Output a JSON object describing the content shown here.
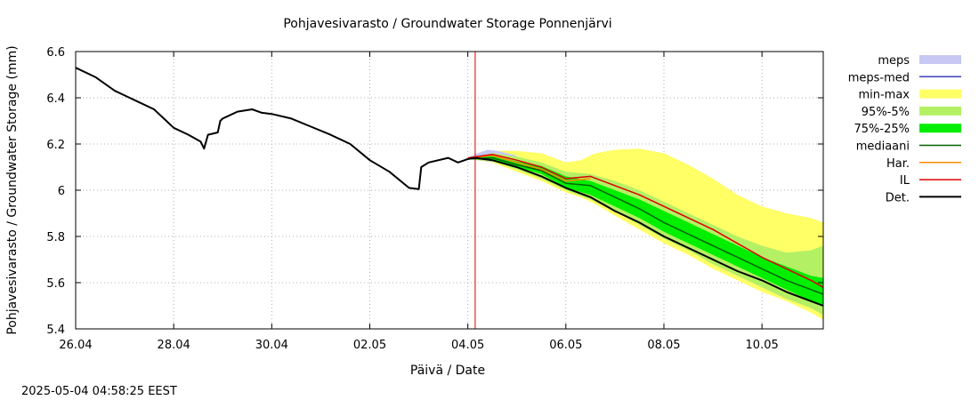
{
  "chart_data": {
    "type": "line",
    "title": "Pohjavesivarasto / Groundwater Storage   Ponnenjärvi",
    "xlabel": "Päivä / Date",
    "ylabel": "Pohjavesivarasto / Groundwater Storage (mm)",
    "timestamp": "2025-05-04 04:58:25 EEST",
    "xlim": [
      0,
      15.25
    ],
    "ylim": [
      5.4,
      6.6
    ],
    "x_ticks": [
      {
        "x": 0,
        "label": "26.04"
      },
      {
        "x": 2,
        "label": "28.04"
      },
      {
        "x": 4,
        "label": "30.04"
      },
      {
        "x": 6,
        "label": "02.05"
      },
      {
        "x": 8,
        "label": "04.05"
      },
      {
        "x": 10,
        "label": "06.05"
      },
      {
        "x": 12,
        "label": "08.05"
      },
      {
        "x": 14,
        "label": "10.05"
      }
    ],
    "y_ticks": [
      {
        "y": 5.4,
        "label": "5.4"
      },
      {
        "y": 5.6,
        "label": "5.6"
      },
      {
        "y": 5.8,
        "label": "5.8"
      },
      {
        "y": 6.0,
        "label": "6"
      },
      {
        "y": 6.2,
        "label": "6.2"
      },
      {
        "y": 6.4,
        "label": "6.4"
      },
      {
        "y": 6.6,
        "label": "6.6"
      }
    ],
    "grid": true,
    "legend_position": "right",
    "now_line_x": 8.15,
    "legend": [
      {
        "label": "meps",
        "kind": "band",
        "color": "#c8c8f4"
      },
      {
        "label": "meps-med",
        "kind": "line",
        "color": "#3c3cbe"
      },
      {
        "label": "min-max",
        "kind": "band",
        "color": "#ffff66"
      },
      {
        "label": "95%-5%",
        "kind": "band",
        "color": "#b4f064"
      },
      {
        "label": "75%-25%",
        "kind": "band",
        "color": "#00ee00"
      },
      {
        "label": "mediaani",
        "kind": "line",
        "color": "#006400"
      },
      {
        "label": "Har.",
        "kind": "line",
        "color": "#ff8c00"
      },
      {
        "label": "IL",
        "kind": "line",
        "color": "#dd0000"
      },
      {
        "label": "Det.",
        "kind": "line",
        "color": "#000000"
      }
    ],
    "bands": {
      "meps": {
        "x": [
          8.0,
          8.2,
          8.4,
          8.6,
          8.8,
          9.0
        ],
        "low": [
          6.135,
          6.13,
          6.125,
          6.12,
          6.11,
          6.1
        ],
        "high": [
          6.14,
          6.16,
          6.175,
          6.17,
          6.16,
          6.15
        ]
      },
      "min_max": {
        "x": [
          8.0,
          8.5,
          9.0,
          9.5,
          10.0,
          10.3,
          10.6,
          11.0,
          11.5,
          12.0,
          12.5,
          13.0,
          13.5,
          14.0,
          14.5,
          15.0,
          15.25
        ],
        "low": [
          6.135,
          6.12,
          6.08,
          6.04,
          5.99,
          5.97,
          5.94,
          5.89,
          5.83,
          5.77,
          5.72,
          5.66,
          5.61,
          5.56,
          5.52,
          5.47,
          5.44
        ],
        "high": [
          6.14,
          6.17,
          6.17,
          6.16,
          6.12,
          6.13,
          6.16,
          6.175,
          6.18,
          6.16,
          6.11,
          6.05,
          5.98,
          5.93,
          5.9,
          5.88,
          5.86
        ]
      },
      "p95_5": {
        "x": [
          8.0,
          8.5,
          9.0,
          9.5,
          10.0,
          10.5,
          11.0,
          11.5,
          12.0,
          12.5,
          13.0,
          13.5,
          14.0,
          14.5,
          15.0,
          15.25
        ],
        "low": [
          6.135,
          6.125,
          6.09,
          6.05,
          6.0,
          5.96,
          5.91,
          5.85,
          5.79,
          5.74,
          5.68,
          5.63,
          5.58,
          5.53,
          5.49,
          5.46
        ],
        "high": [
          6.14,
          6.16,
          6.145,
          6.12,
          6.08,
          6.07,
          6.04,
          6.0,
          5.95,
          5.9,
          5.85,
          5.8,
          5.76,
          5.73,
          5.74,
          5.76
        ]
      },
      "p75_25": {
        "x": [
          8.0,
          8.5,
          9.0,
          9.5,
          10.0,
          10.5,
          11.0,
          11.5,
          12.0,
          12.5,
          13.0,
          13.5,
          14.0,
          14.5,
          15.0,
          15.25
        ],
        "low": [
          6.135,
          6.13,
          6.1,
          6.07,
          6.01,
          5.98,
          5.93,
          5.88,
          5.82,
          5.77,
          5.72,
          5.67,
          5.62,
          5.57,
          5.52,
          5.5
        ],
        "high": [
          6.14,
          6.15,
          6.125,
          6.105,
          6.06,
          6.04,
          6.0,
          5.96,
          5.91,
          5.86,
          5.81,
          5.76,
          5.71,
          5.67,
          5.63,
          5.62
        ]
      }
    },
    "series": [
      {
        "name": "Det.",
        "color": "#000000",
        "x": [
          0,
          0.4,
          0.8,
          1.0,
          1.3,
          1.6,
          1.8,
          2.0,
          2.3,
          2.55,
          2.62,
          2.7,
          2.9,
          2.95,
          3.0,
          3.3,
          3.6,
          3.8,
          4.0,
          4.4,
          4.8,
          5.2,
          5.6,
          6.0,
          6.4,
          6.8,
          7.0,
          7.05,
          7.2,
          7.6,
          7.8,
          8.0,
          8.15,
          8.5,
          9.0,
          9.5,
          10.0,
          10.5,
          11.0,
          11.5,
          12.0,
          12.5,
          13.0,
          13.5,
          14.0,
          14.5,
          15.0,
          15.25
        ],
        "y": [
          6.53,
          6.49,
          6.43,
          6.41,
          6.38,
          6.35,
          6.31,
          6.27,
          6.24,
          6.21,
          6.18,
          6.24,
          6.25,
          6.3,
          6.31,
          6.34,
          6.35,
          6.335,
          6.33,
          6.31,
          6.275,
          6.24,
          6.2,
          6.13,
          6.08,
          6.01,
          6.005,
          6.1,
          6.12,
          6.14,
          6.12,
          6.135,
          6.14,
          6.13,
          6.1,
          6.06,
          6.01,
          5.97,
          5.91,
          5.86,
          5.8,
          5.75,
          5.7,
          5.65,
          5.61,
          5.56,
          5.52,
          5.5
        ]
      },
      {
        "name": "mediaani",
        "color": "#006400",
        "x": [
          8.0,
          8.5,
          9.0,
          9.5,
          10.0,
          10.5,
          11.0,
          11.5,
          12.0,
          12.5,
          13.0,
          13.5,
          14.0,
          14.5,
          15.0,
          15.25
        ],
        "y": [
          6.135,
          6.14,
          6.11,
          6.085,
          6.03,
          6.02,
          5.97,
          5.92,
          5.86,
          5.81,
          5.76,
          5.71,
          5.66,
          5.61,
          5.57,
          5.55
        ]
      },
      {
        "name": "IL",
        "color": "#dd0000",
        "x": [
          8.0,
          8.5,
          9.0,
          9.5,
          10.0,
          10.5,
          11.0,
          11.5,
          12.0,
          12.5,
          13.0,
          13.5,
          14.0,
          14.5,
          15.0,
          15.25
        ],
        "y": [
          6.14,
          6.155,
          6.13,
          6.1,
          6.05,
          6.06,
          6.02,
          5.98,
          5.93,
          5.88,
          5.83,
          5.77,
          5.71,
          5.66,
          5.61,
          5.58
        ]
      },
      {
        "name": "Har.",
        "color": "#ff8c00",
        "x": [
          8.0,
          8.5,
          9.0,
          9.5,
          10.0,
          10.5
        ],
        "y": [
          6.14,
          6.15,
          6.12,
          6.09,
          6.04,
          6.05
        ]
      }
    ]
  }
}
